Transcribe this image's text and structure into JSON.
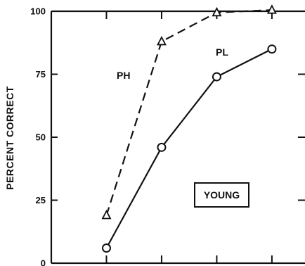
{
  "chart_data": {
    "type": "line",
    "title": "",
    "xlabel": "",
    "ylabel": "PERCENT CORRECT",
    "ylim": [
      0,
      100
    ],
    "yticks": [
      0,
      25,
      50,
      75,
      100
    ],
    "ytick_labels": [
      "0",
      "25",
      "50",
      "75",
      "100"
    ],
    "xticks": [
      1,
      2,
      3,
      4
    ],
    "xlim": [
      0,
      4.6
    ],
    "grid": false,
    "annotation_box": "YOUNG",
    "series": [
      {
        "name": "PH",
        "marker": "triangle",
        "line_style": "dashed",
        "x": [
          1,
          2,
          3,
          4
        ],
        "values": [
          19,
          88,
          99.5,
          100.5
        ]
      },
      {
        "name": "PL",
        "marker": "circle",
        "line_style": "solid",
        "x": [
          1,
          2,
          3,
          4
        ],
        "values": [
          6,
          46,
          74,
          85
        ]
      }
    ]
  }
}
